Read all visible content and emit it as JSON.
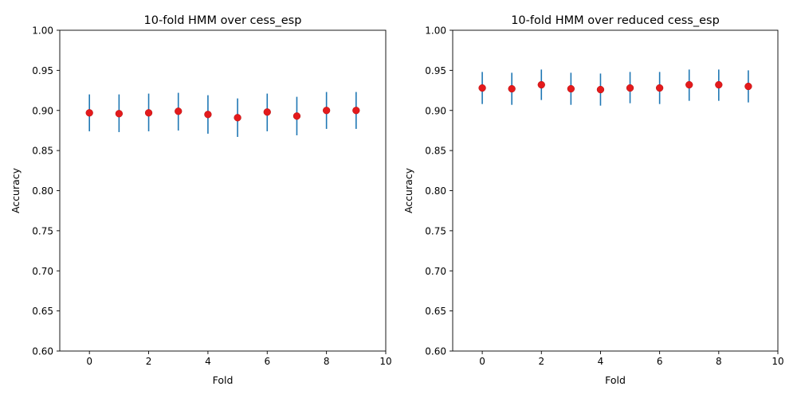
{
  "chart_data": [
    {
      "type": "scatter",
      "title": "10-fold HMM over cess_esp",
      "xlabel": "Fold",
      "ylabel": "Accuracy",
      "xlim": [
        -1,
        10
      ],
      "ylim": [
        0.6,
        1.0
      ],
      "xticks": [
        "0",
        "2",
        "4",
        "6",
        "8",
        "10"
      ],
      "yticks": [
        "0.60",
        "0.65",
        "0.70",
        "0.75",
        "0.80",
        "0.85",
        "0.90",
        "0.95",
        "1.00"
      ],
      "grid": false,
      "point_color": "#e41a1c",
      "errorbar_color": "#1f77b4",
      "points": [
        {
          "x": 0,
          "y": 0.897,
          "lo": 0.874,
          "hi": 0.92
        },
        {
          "x": 1,
          "y": 0.896,
          "lo": 0.873,
          "hi": 0.92
        },
        {
          "x": 2,
          "y": 0.897,
          "lo": 0.874,
          "hi": 0.921
        },
        {
          "x": 3,
          "y": 0.899,
          "lo": 0.875,
          "hi": 0.922
        },
        {
          "x": 4,
          "y": 0.895,
          "lo": 0.871,
          "hi": 0.919
        },
        {
          "x": 5,
          "y": 0.891,
          "lo": 0.867,
          "hi": 0.915
        },
        {
          "x": 6,
          "y": 0.898,
          "lo": 0.874,
          "hi": 0.921
        },
        {
          "x": 7,
          "y": 0.893,
          "lo": 0.869,
          "hi": 0.917
        },
        {
          "x": 8,
          "y": 0.9,
          "lo": 0.877,
          "hi": 0.923
        },
        {
          "x": 9,
          "y": 0.9,
          "lo": 0.877,
          "hi": 0.923
        }
      ]
    },
    {
      "type": "scatter",
      "title": "10-fold HMM over reduced cess_esp",
      "xlabel": "Fold",
      "ylabel": "Accuracy",
      "xlim": [
        -1,
        10
      ],
      "ylim": [
        0.6,
        1.0
      ],
      "xticks": [
        "0",
        "2",
        "4",
        "6",
        "8",
        "10"
      ],
      "yticks": [
        "0.60",
        "0.65",
        "0.70",
        "0.75",
        "0.80",
        "0.85",
        "0.90",
        "0.95",
        "1.00"
      ],
      "grid": false,
      "point_color": "#e41a1c",
      "errorbar_color": "#1f77b4",
      "points": [
        {
          "x": 0,
          "y": 0.928,
          "lo": 0.908,
          "hi": 0.948
        },
        {
          "x": 1,
          "y": 0.927,
          "lo": 0.907,
          "hi": 0.947
        },
        {
          "x": 2,
          "y": 0.932,
          "lo": 0.913,
          "hi": 0.951
        },
        {
          "x": 3,
          "y": 0.927,
          "lo": 0.907,
          "hi": 0.947
        },
        {
          "x": 4,
          "y": 0.926,
          "lo": 0.906,
          "hi": 0.946
        },
        {
          "x": 5,
          "y": 0.928,
          "lo": 0.909,
          "hi": 0.948
        },
        {
          "x": 6,
          "y": 0.928,
          "lo": 0.908,
          "hi": 0.948
        },
        {
          "x": 7,
          "y": 0.932,
          "lo": 0.912,
          "hi": 0.951
        },
        {
          "x": 8,
          "y": 0.932,
          "lo": 0.912,
          "hi": 0.951
        },
        {
          "x": 9,
          "y": 0.93,
          "lo": 0.91,
          "hi": 0.95
        }
      ]
    }
  ]
}
